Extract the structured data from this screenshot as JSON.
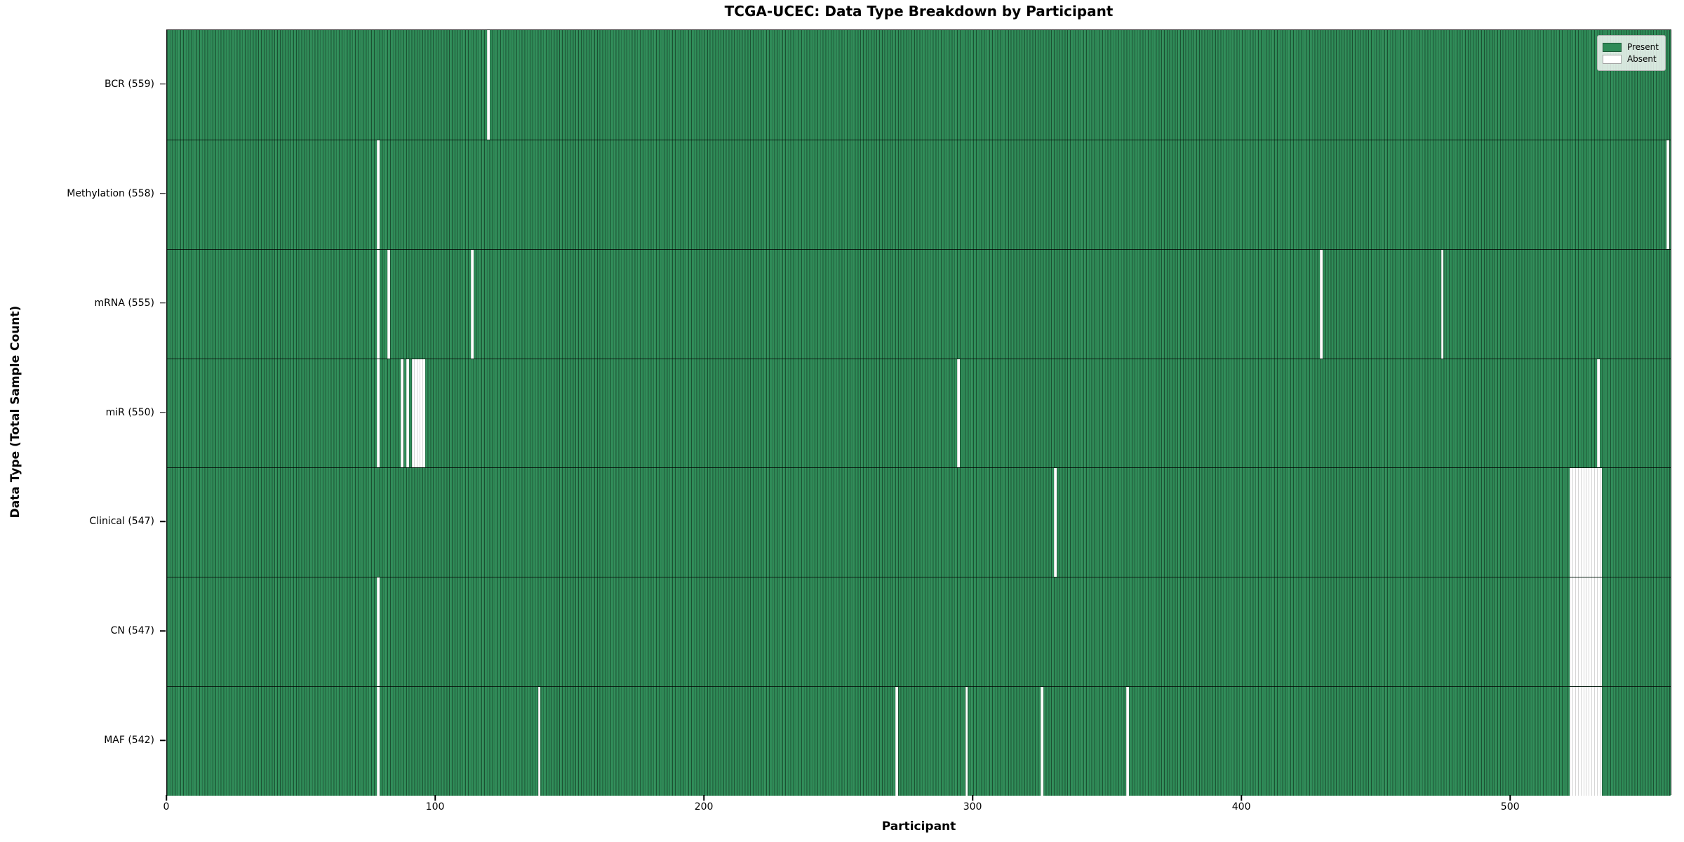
{
  "figure": {
    "title": "TCGA-UCEC: Data Type Breakdown by Participant",
    "xlabel": "Participant",
    "ylabel": "Data Type (Total Sample Count)"
  },
  "legend": {
    "present_label": "Present",
    "absent_label": "Absent"
  },
  "colors": {
    "present": "#2e8b57",
    "absent": "#ffffff",
    "cell_edge": "rgba(0,0,0,0.4)",
    "axis": "#000000"
  },
  "chart_data": {
    "type": "heatmap",
    "title": "TCGA-UCEC: Data Type Breakdown by Participant",
    "xlabel": "Participant",
    "ylabel": "Data Type (Total Sample Count)",
    "x_ticks": [
      0,
      100,
      200,
      300,
      400,
      500
    ],
    "x_range": [
      0,
      560
    ],
    "n_participants": 560,
    "grid": false,
    "legend_position": "upper right",
    "legend_entries": [
      {
        "label": "Present",
        "color": "#2e8b57"
      },
      {
        "label": "Absent",
        "color": "#ffffff"
      }
    ],
    "rows": [
      {
        "label": "BCR (559)",
        "data_type": "BCR",
        "present_count": 559,
        "absent_participants": [
          119
        ]
      },
      {
        "label": "Methylation (558)",
        "data_type": "Methylation",
        "present_count": 558,
        "absent_participants": [
          78,
          558
        ]
      },
      {
        "label": "mRNA (555)",
        "data_type": "mRNA",
        "present_count": 555,
        "absent_participants": [
          78,
          82,
          113,
          429,
          474
        ]
      },
      {
        "label": "miR (550)",
        "data_type": "miR",
        "present_count": 550,
        "absent_participants": [
          78,
          87,
          89,
          91,
          92,
          93,
          94,
          95,
          294,
          532
        ]
      },
      {
        "label": "Clinical (547)",
        "data_type": "Clinical",
        "present_count": 547,
        "absent_participants": [
          330,
          522,
          523,
          524,
          525,
          526,
          527,
          528,
          529,
          530,
          531,
          532,
          533
        ]
      },
      {
        "label": "CN (547)",
        "data_type": "CN",
        "present_count": 547,
        "absent_participants": [
          78,
          522,
          523,
          524,
          525,
          526,
          527,
          528,
          529,
          530,
          531,
          532,
          533
        ]
      },
      {
        "label": "MAF (542)",
        "data_type": "MAF",
        "present_count": 542,
        "absent_participants": [
          78,
          138,
          271,
          297,
          325,
          357,
          522,
          523,
          524,
          525,
          526,
          527,
          528,
          529,
          530,
          531,
          532,
          533
        ]
      }
    ]
  }
}
